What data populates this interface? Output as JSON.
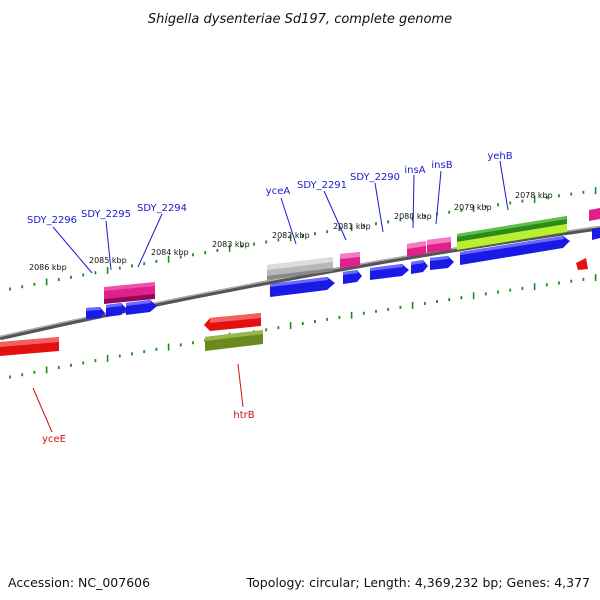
{
  "title": "Shigella dysenteriae Sd197, complete genome",
  "footer": {
    "accession": "Accession: NC_007606",
    "summary": "Topology: circular; Length: 4,369,232 bp; Genes: 4,377"
  },
  "colors": {
    "backbone": "#7a7a7a",
    "tick": "#1c8c1c",
    "blue": "#1a1ae6",
    "magenta": "#e0208c",
    "red": "#e31010",
    "olive": "#6b8a1e",
    "grey": "#b8b8b8",
    "darkgreen": "#2a8a1a",
    "lightgreen": "#b8f030",
    "label_blue": "#1a1acc",
    "label_red": "#cc1111"
  },
  "kbp_labels": [
    "2086 kbp",
    "2085 kbp",
    "2084 kbp",
    "2083 kbp",
    "2082 kbp",
    "2081 kbp",
    "2080 kbp",
    "2079 kbp",
    "2078 kbp"
  ],
  "gene_labels": {
    "top": [
      "SDY_2296",
      "SDY_2295",
      "SDY_2294",
      "yceA",
      "SDY_2291",
      "SDY_2290",
      "insA",
      "insB",
      "yehB"
    ],
    "bottom": [
      "yceE",
      "htrB"
    ]
  }
}
